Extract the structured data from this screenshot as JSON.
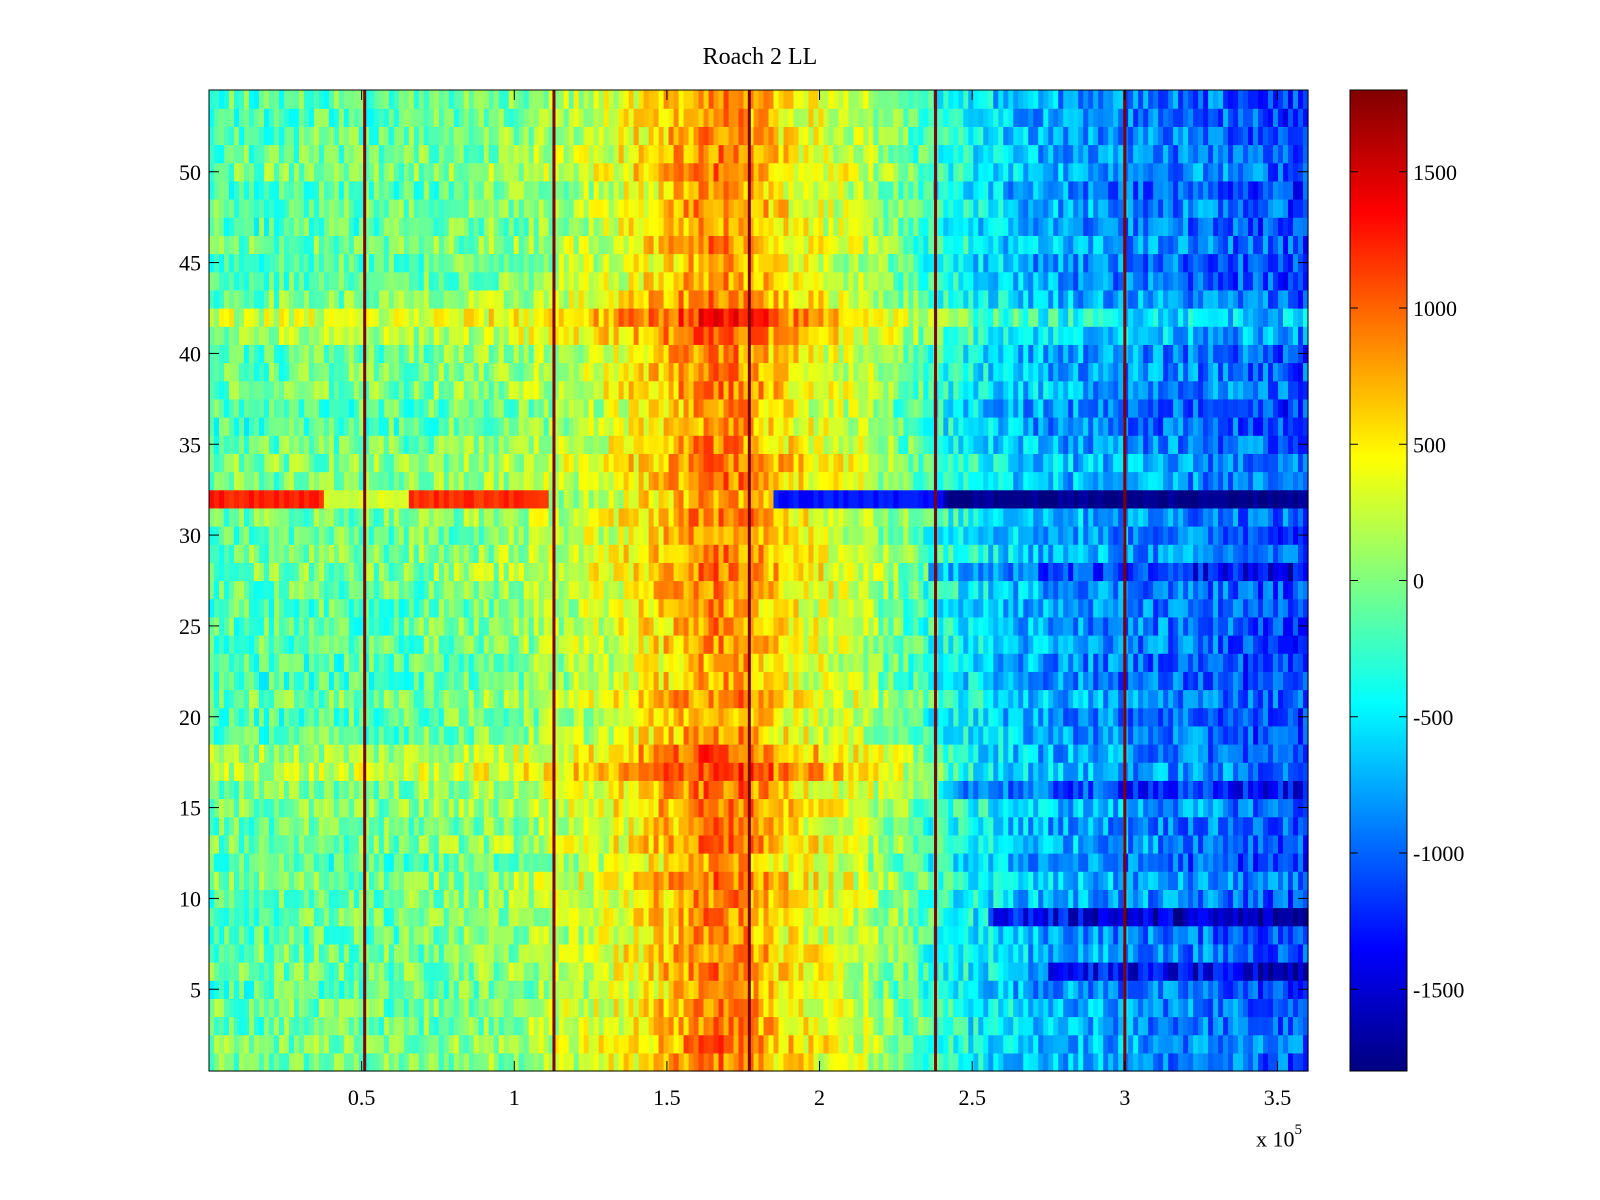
{
  "chart_data": {
    "type": "heatmap",
    "title": "Roach 2 LL",
    "xlabel": "",
    "ylabel": "",
    "x_exponent_label": {
      "base": "x 10",
      "power": "5"
    },
    "xlim": [
      0,
      360000
    ],
    "ylim": [
      0.5,
      54.5
    ],
    "xticks": [
      50000,
      100000,
      150000,
      200000,
      250000,
      300000,
      350000
    ],
    "xtick_labels": [
      "0.5",
      "1",
      "1.5",
      "2",
      "2.5",
      "3",
      "3.5"
    ],
    "yticks": [
      5,
      10,
      15,
      20,
      25,
      30,
      35,
      40,
      45,
      50
    ],
    "ytick_labels": [
      "5",
      "10",
      "15",
      "20",
      "25",
      "30",
      "35",
      "40",
      "45",
      "50"
    ],
    "colormap": "jet",
    "clim": [
      -1800,
      1800
    ],
    "colorbar_ticks": [
      1500,
      1000,
      500,
      0,
      -500,
      -1000,
      -1500
    ],
    "colorbar_tick_labels": [
      "1500",
      "1000",
      "500",
      "0",
      "-500",
      "-1000",
      "-1500"
    ],
    "n_rows": 54,
    "column_profile": {
      "x": [
        0,
        30000,
        60000,
        100000,
        130000,
        150000,
        165000,
        175000,
        190000,
        215000,
        240000,
        270000,
        300000,
        330000,
        360000
      ],
      "value": [
        -150,
        -100,
        -100,
        50,
        300,
        650,
        900,
        850,
        500,
        200,
        -350,
        -700,
        -850,
        -950,
        -1100
      ]
    },
    "row_offsets": [
      {
        "row": 32,
        "segments": [
          {
            "x": [
              0,
              37000
            ],
            "value": 1250
          },
          {
            "x": [
              37000,
              65000
            ],
            "value": 300
          },
          {
            "x": [
              65000,
              112000
            ],
            "value": 1200
          },
          {
            "x": [
              112000,
              185000
            ],
            "value": null
          },
          {
            "x": [
              185000,
              240000
            ],
            "value": -1300
          },
          {
            "x": [
              240000,
              360000
            ],
            "value": -1750
          }
        ]
      },
      {
        "row": 28,
        "delta": -450,
        "from": 235000
      },
      {
        "row": 16,
        "delta": -400,
        "from": 240000
      },
      {
        "row": 9,
        "delta": -650,
        "from": 255000
      },
      {
        "row": 6,
        "delta": -550,
        "from": 275000
      },
      {
        "row": 17,
        "delta": 250,
        "to": 240000
      },
      {
        "row": 18,
        "delta": 200,
        "to": 240000
      },
      {
        "row": 41,
        "delta": 250
      },
      {
        "row": 42,
        "delta": 300
      }
    ],
    "vertical_lines": {
      "x": [
        51000,
        113000,
        177000,
        238000,
        300000
      ],
      "value": 1800
    }
  }
}
